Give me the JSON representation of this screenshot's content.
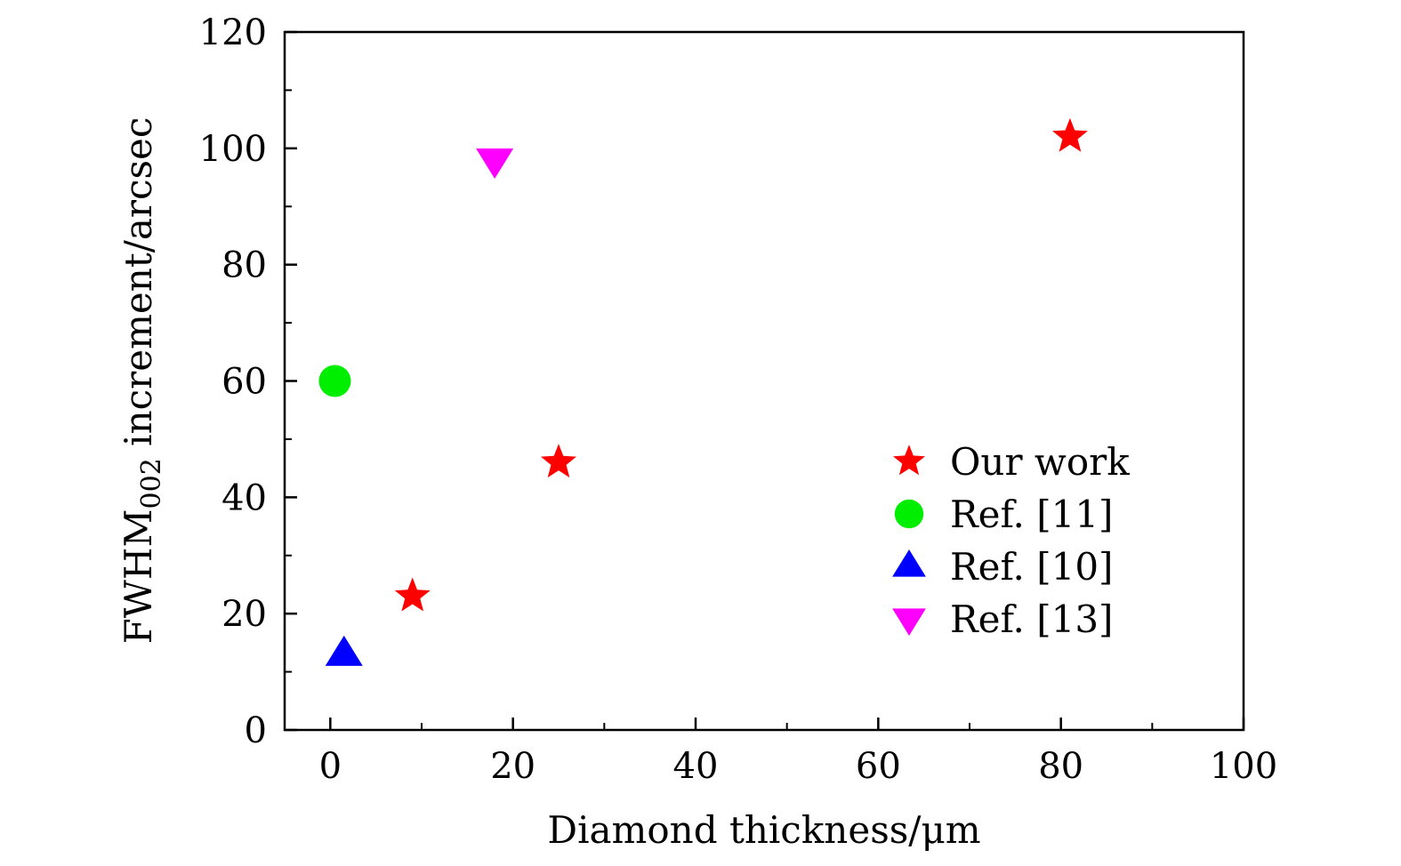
{
  "chart_data": {
    "type": "scatter",
    "title": "",
    "xlabel": "Diamond thickness/μm",
    "ylabel": {
      "main": "FWHM",
      "subscript": "002",
      "rest": " increment/arcsec"
    },
    "xlim": [
      -5,
      100
    ],
    "ylim": [
      0,
      120
    ],
    "x_ticks": [
      0,
      20,
      40,
      60,
      80,
      100
    ],
    "y_ticks": [
      0,
      20,
      40,
      60,
      80,
      100,
      120
    ],
    "x_tick_labels": [
      "0",
      "20",
      "40",
      "60",
      "80",
      "100"
    ],
    "y_tick_labels": [
      "0",
      "20",
      "40",
      "60",
      "80",
      "100",
      "120"
    ],
    "grid": false,
    "legend_position": "right-middle",
    "series": [
      {
        "name": "Our work",
        "marker": "star",
        "color": "#ff0000",
        "points": [
          {
            "x": 9,
            "y": 23
          },
          {
            "x": 25,
            "y": 46
          },
          {
            "x": 81,
            "y": 102
          }
        ]
      },
      {
        "name": "Ref. [11]",
        "marker": "circle",
        "color": "#00ee00",
        "points": [
          {
            "x": 0.5,
            "y": 60
          }
        ]
      },
      {
        "name": "Ref. [10]",
        "marker": "triangle-up",
        "color": "#0000ff",
        "points": [
          {
            "x": 1.5,
            "y": 13
          }
        ]
      },
      {
        "name": "Ref. [13]",
        "marker": "triangle-down",
        "color": "#ff00ff",
        "points": [
          {
            "x": 18,
            "y": 98
          }
        ]
      }
    ]
  }
}
